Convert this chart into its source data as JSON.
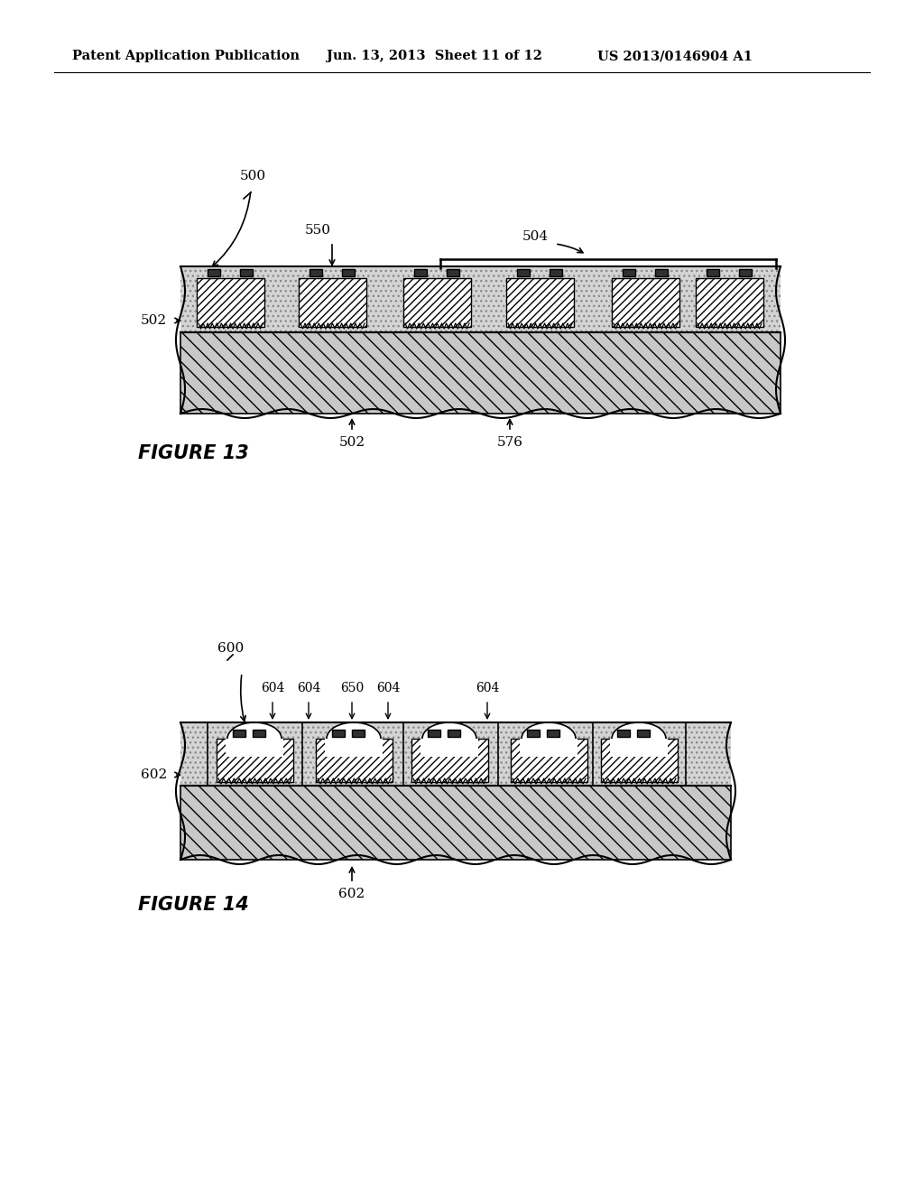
{
  "header_left": "Patent Application Publication",
  "header_mid": "Jun. 13, 2013  Sheet 11 of 12",
  "header_right": "US 2013/0146904 A1",
  "fig13_label": "FIGURE 13",
  "fig14_label": "FIGURE 14"
}
